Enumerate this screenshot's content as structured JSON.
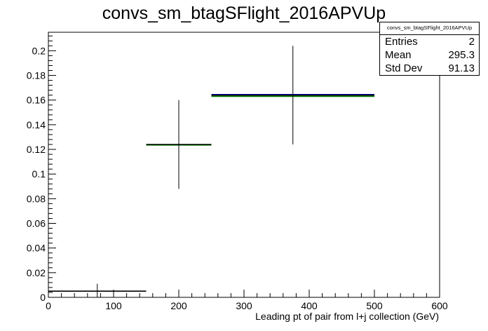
{
  "stats_box": {
    "title": "convs_sm_btagSFlight_2016APVUp",
    "rows": [
      {
        "label": "Entries",
        "value": "2"
      },
      {
        "label": "Mean",
        "value": "295.3"
      },
      {
        "label": "Std Dev",
        "value": "91.13"
      }
    ]
  },
  "chart_data": {
    "type": "histogram",
    "title": "convs_sm_btagSFlight_2016APVUp",
    "xlabel": "Leading pt of pair from l+j collection (GeV)",
    "ylabel": "",
    "xlim": [
      0,
      600
    ],
    "ylim": [
      0,
      0.215
    ],
    "x_ticks": [
      0,
      100,
      200,
      300,
      400,
      500,
      600
    ],
    "x_tick_labels": [
      "0",
      "100",
      "200",
      "300",
      "400",
      "500",
      "600"
    ],
    "y_ticks": [
      0,
      0.02,
      0.04,
      0.06,
      0.08,
      0.1,
      0.12,
      0.14,
      0.16,
      0.18,
      0.2
    ],
    "y_tick_labels": [
      "0",
      "0.02",
      "0.04",
      "0.06",
      "0.08",
      "0.1",
      "0.12",
      "0.14",
      "0.16",
      "0.18",
      "0.2"
    ],
    "grid": false,
    "legend": "none",
    "bins": [
      {
        "x_low": 0,
        "x_high": 150,
        "center": 75,
        "value": 0.005,
        "error": 0.006
      },
      {
        "x_low": 150,
        "x_high": 250,
        "center": 200,
        "value": 0.124,
        "error": 0.036
      },
      {
        "x_low": 250,
        "x_high": 500,
        "center": 375,
        "value": 0.164,
        "error": 0.04
      }
    ],
    "series": [
      {
        "style": "black",
        "color": "#000000",
        "values": [
          0.005,
          0.124,
          0.164
        ],
        "errors": [
          0.006,
          0.036,
          0.04
        ]
      },
      {
        "style": "blue",
        "color": "#0000cc",
        "values": [
          null,
          null,
          0.1645
        ]
      },
      {
        "style": "green",
        "color": "#007a00",
        "values": [
          null,
          0.1235,
          0.163
        ]
      }
    ]
  }
}
